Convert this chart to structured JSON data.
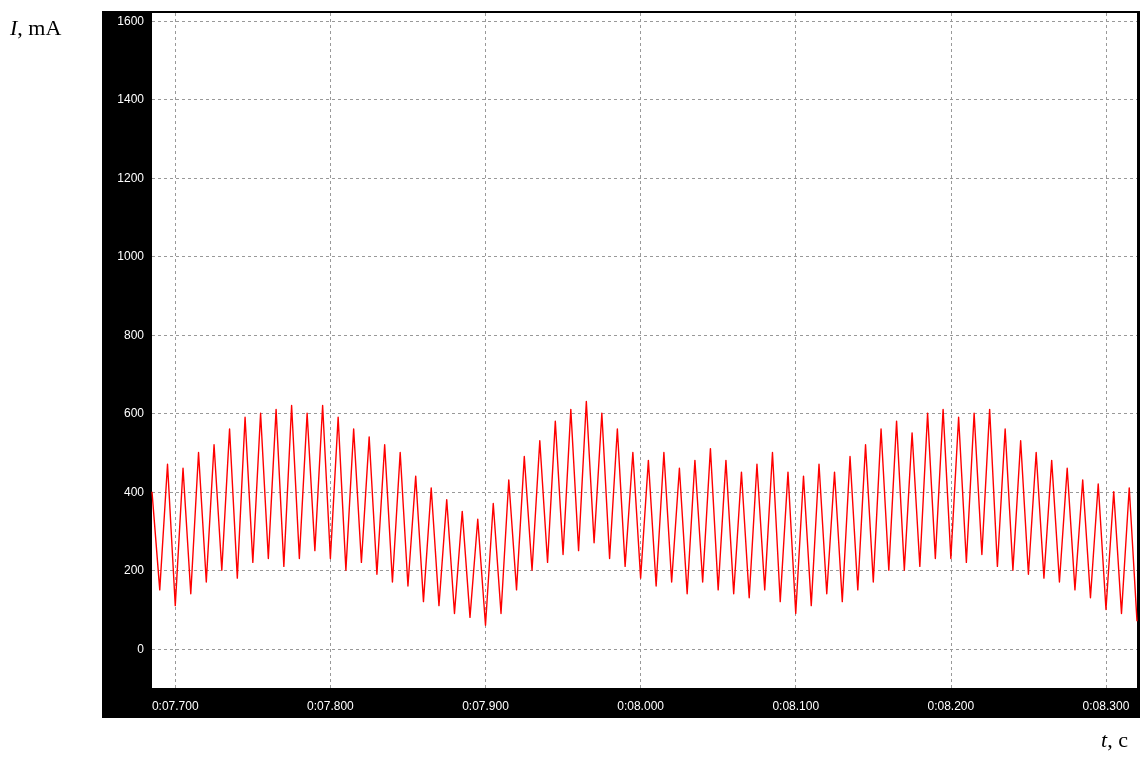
{
  "chart_data": {
    "type": "line",
    "xlabel": "t, c",
    "ylabel": "I, mA",
    "categories": [
      null,
      null,
      null,
      "0:07.700",
      null,
      null,
      null,
      null,
      null,
      null,
      null,
      null,
      null,
      null,
      null,
      null,
      null,
      null,
      null,
      null,
      null,
      null,
      null,
      "0:07.800",
      null,
      null,
      null,
      null,
      null,
      null,
      null,
      null,
      null,
      null,
      null,
      null,
      null,
      null,
      null,
      null,
      null,
      null,
      null,
      "0:07.900",
      null,
      null,
      null,
      null,
      null,
      null,
      null,
      null,
      null,
      null,
      null,
      null,
      null,
      null,
      null,
      null,
      null,
      null,
      null,
      "0:08.000",
      null,
      null,
      null,
      null,
      null,
      null,
      null,
      null,
      null,
      null,
      null,
      null,
      null,
      null,
      null,
      null,
      null,
      null,
      null,
      "0:08.100",
      null,
      null,
      null,
      null,
      null,
      null,
      null,
      null,
      null,
      null,
      null,
      null,
      null,
      null,
      null,
      null,
      null,
      null,
      null,
      "0:08.200",
      null,
      null,
      null,
      null,
      null,
      null,
      null,
      null,
      null,
      null,
      null,
      null,
      null,
      null,
      null,
      null,
      null,
      null,
      null,
      "0:08.300",
      null,
      null,
      null,
      null
    ],
    "ylim": [
      -100,
      1620
    ],
    "yticks": [
      0,
      200,
      400,
      600,
      800,
      1000,
      1200,
      1400,
      1600
    ],
    "grid": true,
    "series": [
      {
        "color": "#ff0000",
        "values": [
          400,
          150,
          470,
          110,
          460,
          140,
          500,
          170,
          520,
          200,
          560,
          180,
          590,
          220,
          600,
          230,
          610,
          210,
          620,
          230,
          600,
          250,
          620,
          230,
          590,
          200,
          560,
          220,
          540,
          190,
          520,
          170,
          500,
          160,
          440,
          120,
          410,
          110,
          380,
          90,
          350,
          80,
          330,
          60,
          370,
          90,
          430,
          150,
          490,
          200,
          530,
          220,
          580,
          240,
          610,
          250,
          630,
          270,
          600,
          230,
          560,
          210,
          500,
          180,
          480,
          160,
          500,
          170,
          460,
          140,
          480,
          170,
          510,
          150,
          480,
          140,
          450,
          130,
          470,
          150,
          500,
          120,
          450,
          90,
          440,
          110,
          470,
          140,
          450,
          120,
          490,
          150,
          520,
          170,
          560,
          200,
          580,
          200,
          550,
          210,
          600,
          230,
          610,
          230,
          590,
          220,
          600,
          240,
          610,
          210,
          560,
          200,
          530,
          190,
          500,
          180,
          480,
          170,
          460,
          150,
          430,
          130,
          420,
          100,
          400,
          90,
          410,
          70
        ]
      }
    ]
  }
}
